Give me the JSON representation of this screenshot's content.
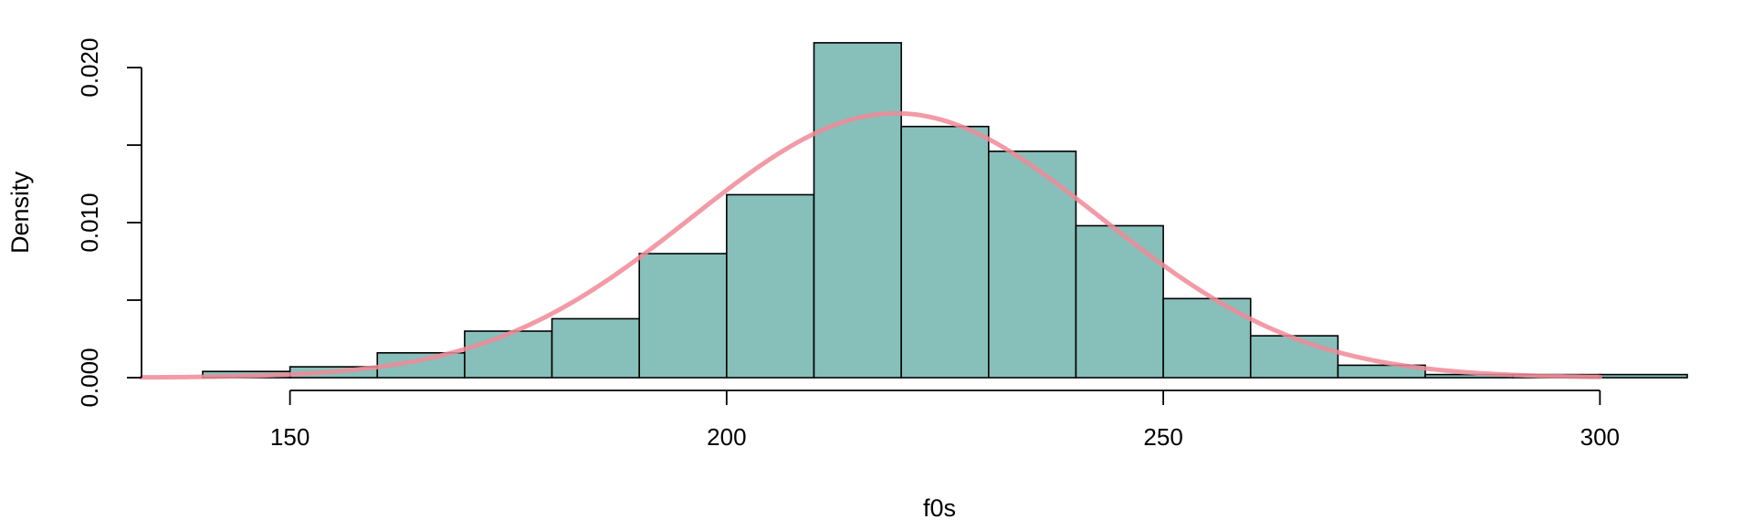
{
  "chart_data": {
    "type": "bar",
    "subtype": "histogram with density curve",
    "title": "",
    "xlabel": "f0s",
    "ylabel": "Density",
    "xlim": [
      133,
      310
    ],
    "ylim": [
      0,
      0.0213
    ],
    "x_ticks": [
      150,
      200,
      250,
      300
    ],
    "x_tick_labels": [
      "150",
      "200",
      "250",
      "300"
    ],
    "y_ticks": [
      0,
      0.005,
      0.01,
      0.015,
      0.02
    ],
    "y_tick_labels": [
      "0.000",
      "",
      "0.010",
      "",
      "0.020"
    ],
    "grid": false,
    "bins": [
      {
        "x0": 140,
        "x1": 150,
        "density": 0.0004
      },
      {
        "x0": 150,
        "x1": 160,
        "density": 0.0007
      },
      {
        "x0": 160,
        "x1": 170,
        "density": 0.0016
      },
      {
        "x0": 170,
        "x1": 180,
        "density": 0.003
      },
      {
        "x0": 180,
        "x1": 190,
        "density": 0.0038
      },
      {
        "x0": 190,
        "x1": 200,
        "density": 0.008
      },
      {
        "x0": 200,
        "x1": 210,
        "density": 0.0118
      },
      {
        "x0": 210,
        "x1": 220,
        "density": 0.0216
      },
      {
        "x0": 220,
        "x1": 230,
        "density": 0.0162
      },
      {
        "x0": 230,
        "x1": 240,
        "density": 0.0146
      },
      {
        "x0": 240,
        "x1": 250,
        "density": 0.0098
      },
      {
        "x0": 250,
        "x1": 260,
        "density": 0.0051
      },
      {
        "x0": 260,
        "x1": 270,
        "density": 0.0027
      },
      {
        "x0": 270,
        "x1": 280,
        "density": 0.0008
      },
      {
        "x0": 280,
        "x1": 290,
        "density": 0.0002
      },
      {
        "x0": 290,
        "x1": 300,
        "density": 0.0002
      },
      {
        "x0": 300,
        "x1": 310,
        "density": 0.0002
      }
    ],
    "density_curve": {
      "distribution": "normal",
      "mean": 219.4,
      "sd": 23.4,
      "x_range": [
        133,
        300
      ]
    },
    "colors": {
      "bar_fill": "#87C0BA",
      "bar_stroke": "#000000",
      "curve": "#F08A98"
    }
  }
}
